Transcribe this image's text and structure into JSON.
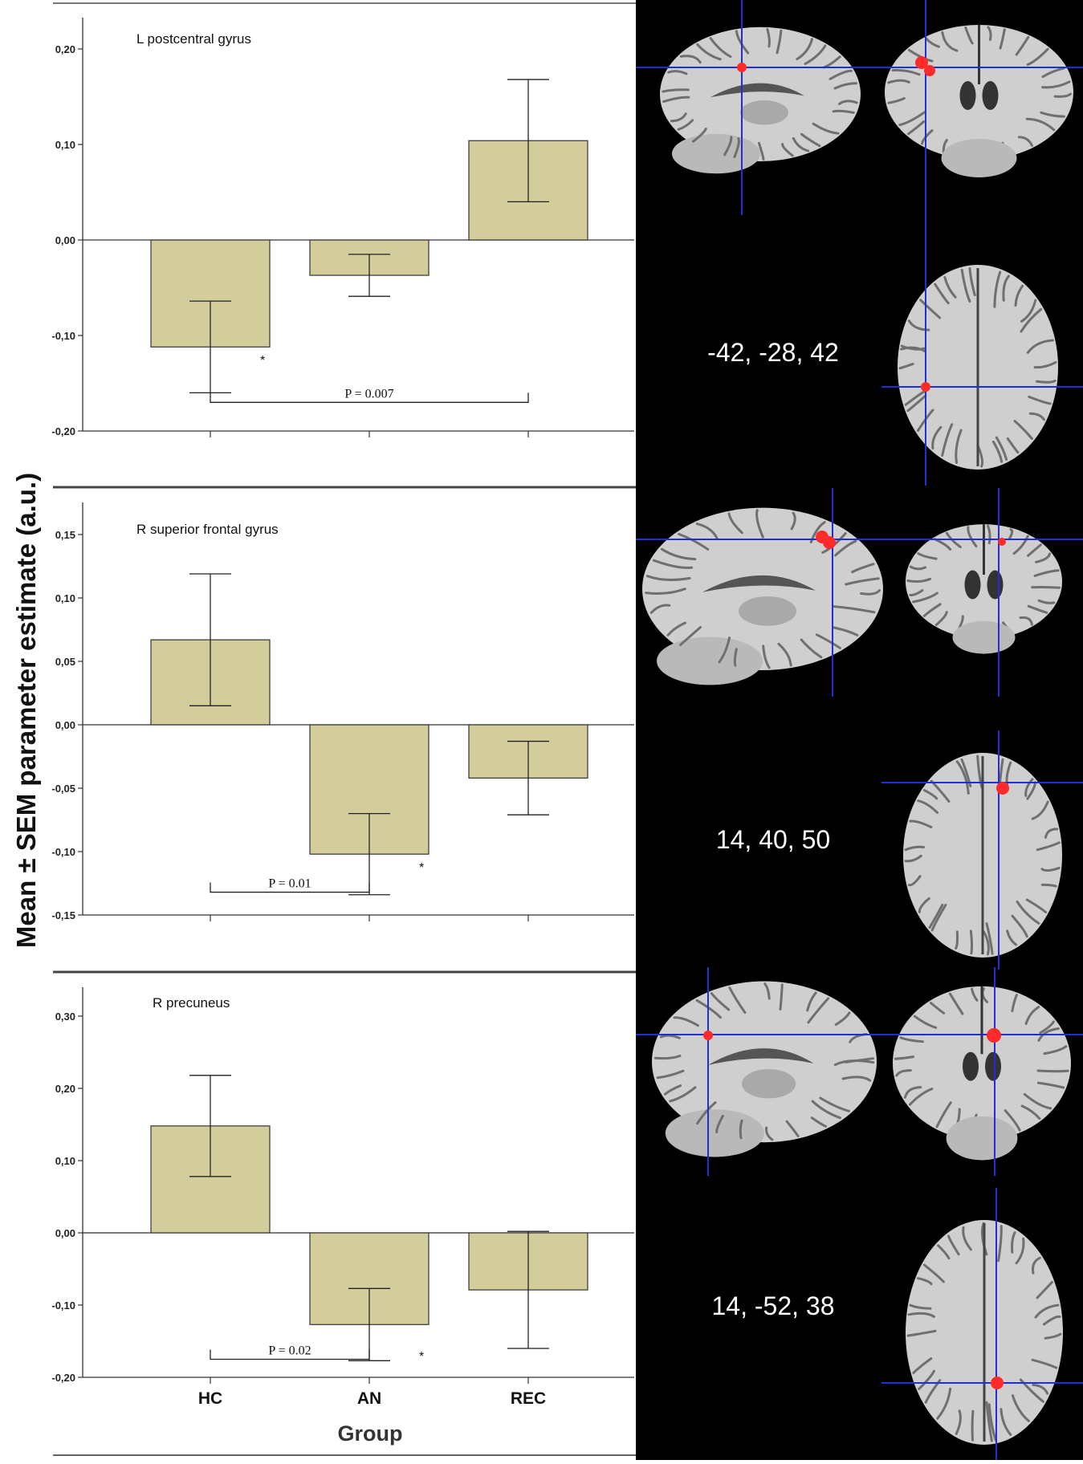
{
  "figure": {
    "y_axis_label": "Mean ± SEM parameter estimate (a.u.)",
    "x_axis_label": "Group"
  },
  "chart_data": [
    {
      "type": "bar",
      "title": "L postcentral gyrus",
      "categories": [
        "HC",
        "AN",
        "REC"
      ],
      "values": [
        -0.112,
        -0.037,
        0.104
      ],
      "error": [
        0.048,
        0.022,
        0.064
      ],
      "ylim": [
        -0.2,
        0.24
      ],
      "yticks": [
        -0.2,
        -0.1,
        0.0,
        0.1,
        0.2
      ],
      "ytick_labels": [
        "-0,20",
        "-0,10",
        "0,00",
        "0,10",
        "0,20"
      ],
      "significance": {
        "from": "HC",
        "to": "REC",
        "label": "P = 0.007",
        "y": -0.17
      },
      "asterisk": {
        "category": "HC",
        "value": -0.125,
        "label": "*"
      },
      "bar_color": "#d2cd9b",
      "brain_coords": "-42, -28, 42"
    },
    {
      "type": "bar",
      "title": "R superior frontal gyrus",
      "categories": [
        "HC",
        "AN",
        "REC"
      ],
      "values": [
        0.067,
        -0.102,
        -0.042
      ],
      "error": [
        0.052,
        0.032,
        0.029
      ],
      "ylim": [
        -0.15,
        0.183
      ],
      "yticks": [
        -0.15,
        -0.1,
        -0.05,
        0.0,
        0.05,
        0.1,
        0.15
      ],
      "ytick_labels": [
        "-0,15",
        "-0,10",
        "-0,05",
        "0,00",
        "0,05",
        "0,10",
        "0,15"
      ],
      "significance": {
        "from": "HC",
        "to": "AN",
        "label": "P = 0.01",
        "y": -0.132
      },
      "asterisk": {
        "category": "AN",
        "value": -0.112,
        "label": "*"
      },
      "bar_color": "#d2cd9b",
      "brain_coords": "14, 40, 50"
    },
    {
      "type": "bar",
      "title": "R precuneus",
      "categories": [
        "HC",
        "AN",
        "REC"
      ],
      "values": [
        0.148,
        -0.127,
        -0.079
      ],
      "error": [
        0.07,
        0.05,
        0.081
      ],
      "ylim": [
        -0.2,
        0.35
      ],
      "yticks": [
        -0.2,
        -0.1,
        0.0,
        0.1,
        0.2,
        0.3
      ],
      "ytick_labels": [
        "-0,20",
        "-0,10",
        "0,00",
        "0,10",
        "0,20",
        "0,30"
      ],
      "significance": {
        "from": "HC",
        "to": "AN",
        "label": "P = 0.02",
        "y": -0.175
      },
      "asterisk": {
        "category": "AN",
        "value": -0.17,
        "label": "*"
      },
      "bar_color": "#d2cd9b",
      "brain_coords": "14, -52, 38"
    }
  ],
  "colors": {
    "brain_background": "#000000",
    "crosshair": "#1f2fd6",
    "activation": "#ff2a2a",
    "brain_tissue": "#cfcfcf",
    "brain_sulci": "#6f6f6f"
  }
}
